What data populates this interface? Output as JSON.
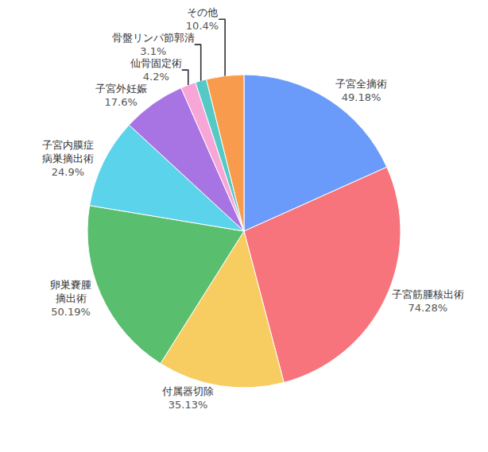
{
  "chart_data": {
    "type": "pie",
    "categories": [
      "子宮全摘術",
      "子宮筋腫核出術",
      "付属器切除",
      "卵巣嚢腫\n摘出術",
      "子宮内膜症\n病巣摘出術",
      "子宮外妊娠",
      "仙骨固定術",
      "骨盤リンパ節郭清",
      "その他"
    ],
    "values": [
      49.18,
      74.28,
      35.13,
      50.19,
      24.9,
      17.6,
      4.2,
      3.1,
      10.4
    ],
    "value_labels": [
      "49.18%",
      "74.28%",
      "35.13%",
      "50.19%",
      "24.9%",
      "17.6%",
      "4.2%",
      "3.1%",
      "10.4%"
    ],
    "colors": [
      "#6b9bfa",
      "#f7747c",
      "#f7cc61",
      "#5abe6f",
      "#5bd3ea",
      "#a873e3",
      "#f8a6d8",
      "#55c9c4",
      "#f99b4c"
    ],
    "data_labels": true
  }
}
